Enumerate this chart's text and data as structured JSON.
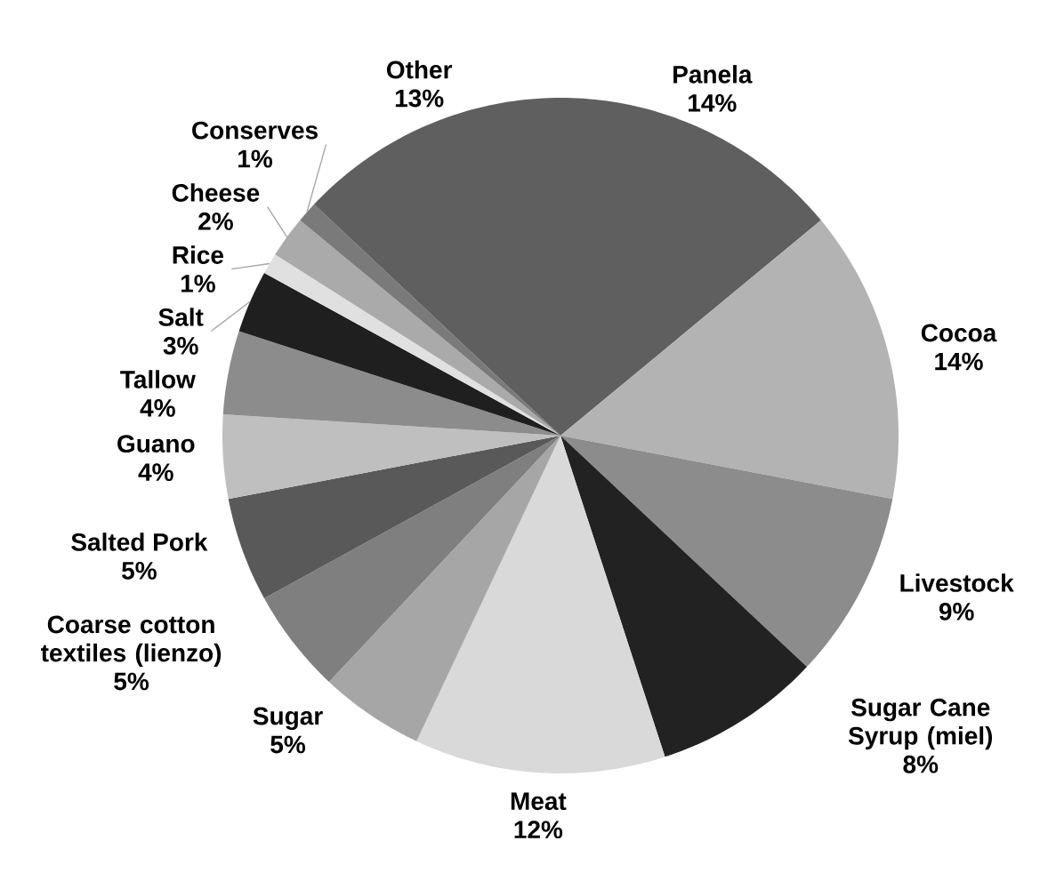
{
  "chart_data": {
    "type": "pie",
    "categories": [
      "Panela",
      "Cocoa",
      "Livestock",
      "Sugar Cane Syrup (miel)",
      "Meat",
      "Sugar",
      "Coarse cotton textiles (lienzo)",
      "Salted Pork",
      "Guano",
      "Tallow",
      "Salt",
      "Rice",
      "Cheese",
      "Conserves",
      "Other"
    ],
    "values": [
      14,
      14,
      9,
      8,
      12,
      5,
      5,
      5,
      4,
      4,
      3,
      1,
      2,
      1,
      13
    ],
    "colors": [
      "#5f5f5f",
      "#b3b3b3",
      "#8c8c8c",
      "#222222",
      "#d9d9d9",
      "#a6a6a6",
      "#7f7f7f",
      "#595959",
      "#bfbfbf",
      "#8c8c8c",
      "#1f1f1f",
      "#e0e0e0",
      "#aaaaaa",
      "#7a7a7a",
      "#5f5f5f"
    ],
    "value_labels": [
      "14%",
      "14%",
      "9%",
      "8%",
      "12%",
      "5%",
      "5%",
      "5%",
      "4%",
      "4%",
      "3%",
      "1%",
      "2%",
      "1%",
      "13%"
    ]
  }
}
